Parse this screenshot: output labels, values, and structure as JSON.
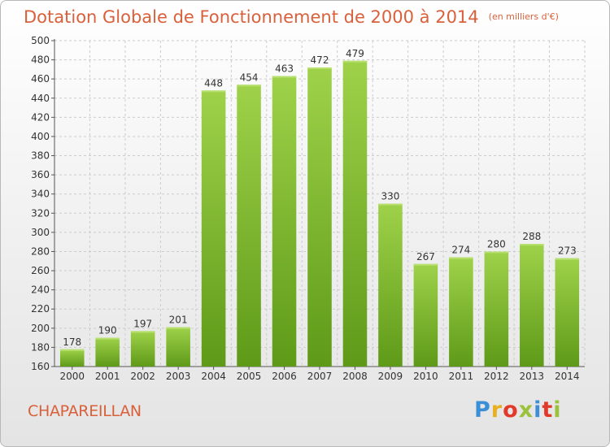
{
  "header": {
    "title": "Dotation Globale de Fonctionnement de 2000 à 2014",
    "unit_note": "(en milliers d'€)"
  },
  "footer": {
    "location": "CHAPAREILLAN",
    "logo_text": "Proxiti",
    "logo_colors": [
      "#3a8fd6",
      "#e8b020",
      "#e23a2a",
      "#9bc23a",
      "#3a8fd6",
      "#e23a2a",
      "#9bc23a"
    ]
  },
  "colors": {
    "bar_top": "#9fd24a",
    "bar_bottom": "#5e9a18",
    "text_accent": "#d9603b",
    "grid": "#cccccc"
  },
  "chart_data": {
    "type": "bar",
    "title": "Dotation Globale de Fonctionnement de 2000 à 2014",
    "subtitle": "(en milliers d'€)",
    "xlabel": "",
    "ylabel": "",
    "categories": [
      "2000",
      "2001",
      "2002",
      "2003",
      "2004",
      "2005",
      "2006",
      "2007",
      "2008",
      "2009",
      "2010",
      "2011",
      "2012",
      "2013",
      "2014"
    ],
    "values": [
      178,
      190,
      197,
      201,
      448,
      454,
      463,
      472,
      479,
      330,
      267,
      274,
      280,
      288,
      273
    ],
    "ylim": [
      160,
      500
    ],
    "yticks": [
      160,
      180,
      200,
      220,
      240,
      260,
      280,
      300,
      320,
      340,
      360,
      380,
      400,
      420,
      440,
      460,
      480,
      500
    ],
    "grid": true,
    "legend": "none"
  }
}
